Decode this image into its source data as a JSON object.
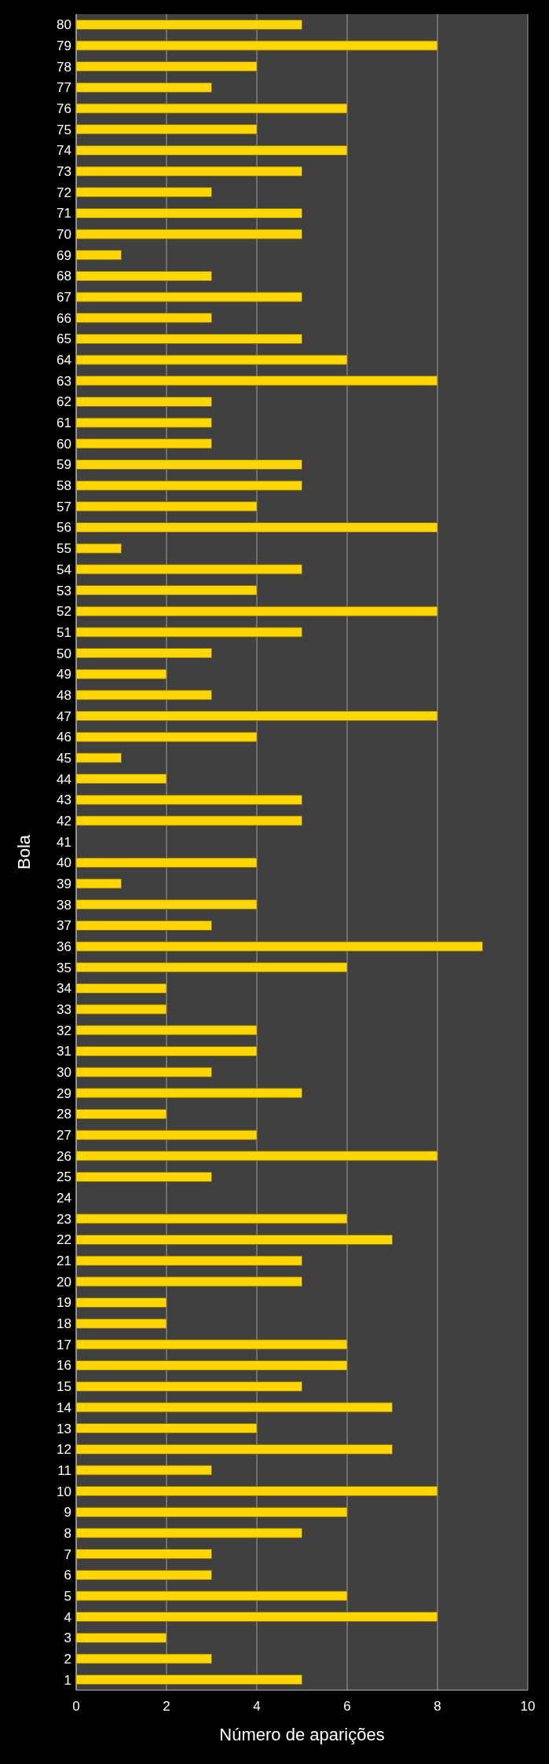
{
  "chart_data": {
    "type": "bar",
    "orientation": "horizontal",
    "xlabel": "Número de aparições",
    "ylabel": "Bola",
    "color": "#ffd700",
    "grid": "x",
    "xlim": [
      0,
      10
    ],
    "xticks": [
      0,
      2,
      4,
      6,
      8,
      10
    ],
    "categories": [
      "80",
      "79",
      "78",
      "77",
      "76",
      "75",
      "74",
      "73",
      "72",
      "71",
      "70",
      "69",
      "68",
      "67",
      "66",
      "65",
      "64",
      "63",
      "62",
      "61",
      "60",
      "59",
      "58",
      "57",
      "56",
      "55",
      "54",
      "53",
      "52",
      "51",
      "50",
      "49",
      "48",
      "47",
      "46",
      "45",
      "44",
      "43",
      "42",
      "41",
      "40",
      "39",
      "38",
      "37",
      "36",
      "35",
      "34",
      "33",
      "32",
      "31",
      "30",
      "29",
      "28",
      "27",
      "26",
      "25",
      "24",
      "23",
      "22",
      "21",
      "20",
      "19",
      "18",
      "17",
      "16",
      "15",
      "14",
      "13",
      "12",
      "11",
      "10",
      "9",
      "8",
      "7",
      "6",
      "5",
      "4",
      "3",
      "2",
      "1"
    ],
    "values": [
      5,
      8,
      4,
      3,
      6,
      4,
      6,
      5,
      3,
      5,
      5,
      1,
      3,
      5,
      3,
      5,
      6,
      8,
      3,
      3,
      3,
      5,
      5,
      4,
      8,
      1,
      5,
      4,
      8,
      5,
      3,
      2,
      3,
      8,
      4,
      1,
      2,
      5,
      5,
      0,
      4,
      1,
      4,
      3,
      9,
      6,
      2,
      2,
      4,
      4,
      3,
      5,
      2,
      4,
      8,
      3,
      0,
      6,
      7,
      5,
      5,
      2,
      2,
      6,
      6,
      5,
      7,
      4,
      7,
      3,
      8,
      6,
      5,
      3,
      3,
      6,
      8,
      2,
      3,
      5
    ]
  }
}
